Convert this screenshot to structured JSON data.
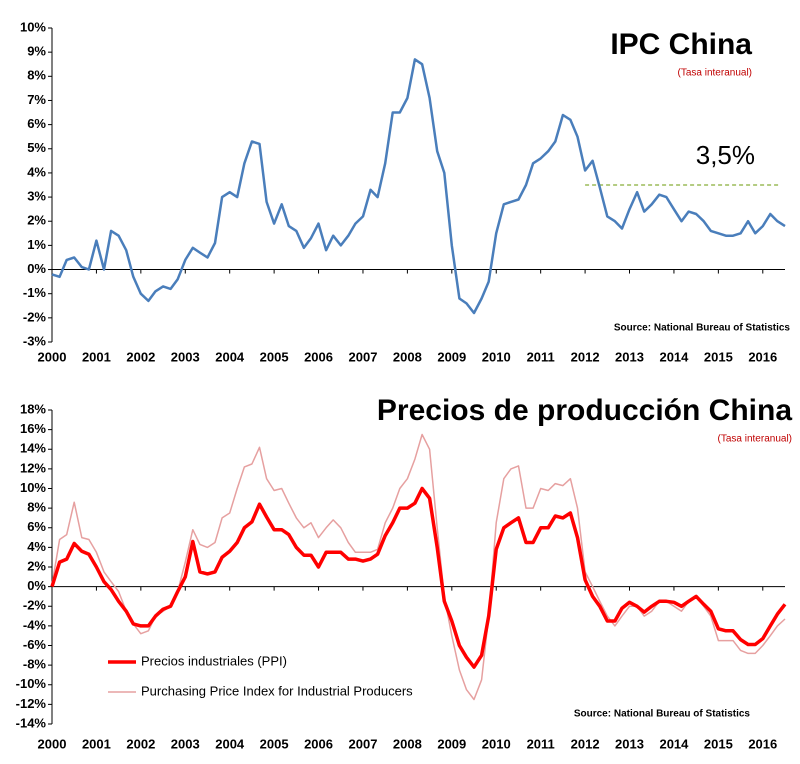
{
  "chart_data": [
    {
      "type": "line",
      "title": "IPC China",
      "subtitle": "(Tasa interanual)",
      "source": "Source: National Bureau of Statistics",
      "x": [
        2000,
        2000.17,
        2000.33,
        2000.5,
        2000.67,
        2000.83,
        2001,
        2001.17,
        2001.33,
        2001.5,
        2001.67,
        2001.83,
        2002,
        2002.17,
        2002.33,
        2002.5,
        2002.67,
        2002.83,
        2003,
        2003.17,
        2003.33,
        2003.5,
        2003.67,
        2003.83,
        2004,
        2004.17,
        2004.33,
        2004.5,
        2004.67,
        2004.83,
        2005,
        2005.17,
        2005.33,
        2005.5,
        2005.67,
        2005.83,
        2006,
        2006.17,
        2006.33,
        2006.5,
        2006.67,
        2006.83,
        2007,
        2007.17,
        2007.33,
        2007.5,
        2007.67,
        2007.83,
        2008,
        2008.17,
        2008.33,
        2008.5,
        2008.67,
        2008.83,
        2009,
        2009.17,
        2009.33,
        2009.5,
        2009.67,
        2009.83,
        2010,
        2010.17,
        2010.33,
        2010.5,
        2010.67,
        2010.83,
        2011,
        2011.17,
        2011.33,
        2011.5,
        2011.67,
        2011.83,
        2012,
        2012.17,
        2012.33,
        2012.5,
        2012.67,
        2012.83,
        2013,
        2013.17,
        2013.33,
        2013.5,
        2013.67,
        2013.83,
        2014,
        2014.17,
        2014.33,
        2014.5,
        2014.67,
        2014.83,
        2015,
        2015.17,
        2015.33,
        2015.5,
        2015.67,
        2015.83,
        2016,
        2016.17,
        2016.33,
        2016.5
      ],
      "series": [
        {
          "color": "#4a7ebb",
          "values": [
            -0.2,
            -0.3,
            0.4,
            0.5,
            0.1,
            0.0,
            1.2,
            0.0,
            1.6,
            1.4,
            0.8,
            -0.3,
            -1.0,
            -1.3,
            -0.9,
            -0.7,
            -0.8,
            -0.4,
            0.4,
            0.9,
            0.7,
            0.5,
            1.1,
            3.0,
            3.2,
            3.0,
            4.4,
            5.3,
            5.2,
            2.8,
            1.9,
            2.7,
            1.8,
            1.6,
            0.9,
            1.3,
            1.9,
            0.8,
            1.4,
            1.0,
            1.4,
            1.9,
            2.2,
            3.3,
            3.0,
            4.4,
            6.5,
            6.5,
            7.1,
            8.7,
            8.5,
            7.1,
            4.9,
            4.0,
            1.0,
            -1.2,
            -1.4,
            -1.8,
            -1.2,
            -0.5,
            1.5,
            2.7,
            2.8,
            2.9,
            3.5,
            4.4,
            4.6,
            4.9,
            5.3,
            6.4,
            6.2,
            5.5,
            4.1,
            4.5,
            3.4,
            2.2,
            2.0,
            1.7,
            2.5,
            3.2,
            2.4,
            2.7,
            3.1,
            3.0,
            2.5,
            2.0,
            2.4,
            2.3,
            2.0,
            1.6,
            1.5,
            1.4,
            1.4,
            1.5,
            2.0,
            1.5,
            1.8,
            2.3,
            2.0,
            1.8
          ]
        }
      ],
      "reference_line": {
        "value": 3.5,
        "x_start": 2012,
        "label": "3,5%",
        "color": "#9bbb59"
      },
      "xlim": [
        2000,
        2016.5
      ],
      "xticks": [
        2000,
        2001,
        2002,
        2003,
        2004,
        2005,
        2006,
        2007,
        2008,
        2009,
        2010,
        2011,
        2012,
        2013,
        2014,
        2015,
        2016
      ],
      "ylim": [
        -3,
        10
      ],
      "yticks": [
        {
          "value": -3,
          "label": "-3%"
        },
        {
          "value": -2,
          "label": "-2%"
        },
        {
          "value": -1,
          "label": "-1%"
        },
        {
          "value": 0,
          "label": "0%"
        },
        {
          "value": 1,
          "label": "1%"
        },
        {
          "value": 2,
          "label": "2%"
        },
        {
          "value": 3,
          "label": "3%"
        },
        {
          "value": 4,
          "label": "4%"
        },
        {
          "value": 5,
          "label": "5%"
        },
        {
          "value": 6,
          "label": "6%"
        },
        {
          "value": 7,
          "label": "7%"
        },
        {
          "value": 8,
          "label": "8%"
        },
        {
          "value": 9,
          "label": "9%"
        },
        {
          "value": 10,
          "label": "10%"
        }
      ]
    },
    {
      "type": "line",
      "title": "Precios de producción China",
      "subtitle": "(Tasa interanual)",
      "source": "Source: National Bureau of Statistics",
      "x": [
        2000,
        2000.17,
        2000.33,
        2000.5,
        2000.67,
        2000.83,
        2001,
        2001.17,
        2001.33,
        2001.5,
        2001.67,
        2001.83,
        2002,
        2002.17,
        2002.33,
        2002.5,
        2002.67,
        2002.83,
        2003,
        2003.17,
        2003.33,
        2003.5,
        2003.67,
        2003.83,
        2004,
        2004.17,
        2004.33,
        2004.5,
        2004.67,
        2004.83,
        2005,
        2005.17,
        2005.33,
        2005.5,
        2005.67,
        2005.83,
        2006,
        2006.17,
        2006.33,
        2006.5,
        2006.67,
        2006.83,
        2007,
        2007.17,
        2007.33,
        2007.5,
        2007.67,
        2007.83,
        2008,
        2008.17,
        2008.33,
        2008.5,
        2008.67,
        2008.83,
        2009,
        2009.17,
        2009.33,
        2009.5,
        2009.67,
        2009.83,
        2010,
        2010.17,
        2010.33,
        2010.5,
        2010.67,
        2010.83,
        2011,
        2011.17,
        2011.33,
        2011.5,
        2011.67,
        2011.83,
        2012,
        2012.17,
        2012.33,
        2012.5,
        2012.67,
        2012.83,
        2013,
        2013.17,
        2013.33,
        2013.5,
        2013.67,
        2013.83,
        2014,
        2014.17,
        2014.33,
        2014.5,
        2014.67,
        2014.83,
        2015,
        2015.17,
        2015.33,
        2015.5,
        2015.67,
        2015.83,
        2016,
        2016.17,
        2016.33,
        2016.5
      ],
      "series": [
        {
          "name": "Precios industriales (PPI)",
          "color": "#ff0000",
          "values": [
            0.0,
            2.5,
            2.8,
            4.4,
            3.6,
            3.3,
            2.0,
            0.5,
            -0.3,
            -1.5,
            -2.5,
            -3.8,
            -4.0,
            -4.0,
            -3.0,
            -2.3,
            -2.0,
            -0.5,
            1.0,
            4.6,
            1.5,
            1.3,
            1.5,
            3.0,
            3.6,
            4.5,
            6.0,
            6.6,
            8.4,
            7.1,
            5.8,
            5.8,
            5.3,
            4.0,
            3.2,
            3.2,
            2.0,
            3.5,
            3.5,
            3.5,
            2.8,
            2.8,
            2.6,
            2.8,
            3.3,
            5.2,
            6.5,
            8.0,
            8.0,
            8.5,
            10.0,
            9.0,
            4.0,
            -1.5,
            -3.5,
            -6.0,
            -7.2,
            -8.2,
            -7.0,
            -3.0,
            3.8,
            6.0,
            6.5,
            7.0,
            4.5,
            4.5,
            6.0,
            6.0,
            7.2,
            7.0,
            7.5,
            5.0,
            0.7,
            -1.0,
            -2.0,
            -3.5,
            -3.5,
            -2.2,
            -1.6,
            -2.0,
            -2.6,
            -2.0,
            -1.5,
            -1.5,
            -1.6,
            -2.0,
            -1.5,
            -1.0,
            -1.8,
            -2.5,
            -4.3,
            -4.5,
            -4.5,
            -5.4,
            -5.9,
            -5.9,
            -5.3,
            -4.0,
            -2.8,
            -1.8
          ]
        },
        {
          "name": "Purchasing Price Index for Industrial Producers",
          "color": "#e6a0a0",
          "values": [
            0.2,
            4.8,
            5.3,
            8.6,
            5.0,
            4.8,
            3.5,
            1.5,
            0.5,
            -0.5,
            -2.5,
            -3.8,
            -4.8,
            -4.5,
            -3.0,
            -2.5,
            -2.0,
            -0.5,
            2.5,
            5.8,
            4.3,
            4.0,
            4.5,
            7.0,
            7.5,
            10.0,
            12.2,
            12.5,
            14.2,
            11.0,
            9.8,
            10.0,
            8.5,
            7.0,
            6.0,
            6.5,
            5.0,
            6.0,
            6.8,
            6.0,
            4.5,
            3.5,
            3.5,
            3.5,
            3.8,
            6.5,
            8.0,
            10.0,
            11.0,
            13.0,
            15.5,
            14.0,
            6.0,
            -1.0,
            -5.0,
            -8.5,
            -10.5,
            -11.5,
            -9.5,
            -3.0,
            6.5,
            11.0,
            12.0,
            12.3,
            8.0,
            8.0,
            10.0,
            9.8,
            10.5,
            10.3,
            11.0,
            8.0,
            1.5,
            0.0,
            -1.5,
            -3.0,
            -4.0,
            -3.0,
            -2.0,
            -2.0,
            -3.0,
            -2.5,
            -1.5,
            -1.5,
            -2.0,
            -2.5,
            -1.5,
            -1.0,
            -2.0,
            -3.0,
            -5.5,
            -5.5,
            -5.5,
            -6.5,
            -6.8,
            -6.8,
            -6.0,
            -5.0,
            -4.0,
            -3.3
          ]
        }
      ],
      "legend": "lower left",
      "xlim": [
        2000,
        2016.5
      ],
      "xticks": [
        2000,
        2001,
        2002,
        2003,
        2004,
        2005,
        2006,
        2007,
        2008,
        2009,
        2010,
        2011,
        2012,
        2013,
        2014,
        2015,
        2016
      ],
      "ylim": [
        -14,
        18
      ],
      "yticks": [
        {
          "value": -14,
          "label": "-14%"
        },
        {
          "value": -12,
          "label": "-12%"
        },
        {
          "value": -10,
          "label": "-10%"
        },
        {
          "value": -8,
          "label": "-8%"
        },
        {
          "value": -6,
          "label": "-6%"
        },
        {
          "value": -4,
          "label": "-4%"
        },
        {
          "value": -2,
          "label": "-2%"
        },
        {
          "value": 0,
          "label": "0%"
        },
        {
          "value": 2,
          "label": "2%"
        },
        {
          "value": 4,
          "label": "4%"
        },
        {
          "value": 6,
          "label": "6%"
        },
        {
          "value": 8,
          "label": "8%"
        },
        {
          "value": 10,
          "label": "10%"
        },
        {
          "value": 12,
          "label": "12%"
        },
        {
          "value": 14,
          "label": "14%"
        },
        {
          "value": 16,
          "label": "16%"
        },
        {
          "value": 18,
          "label": "18%"
        }
      ]
    }
  ]
}
